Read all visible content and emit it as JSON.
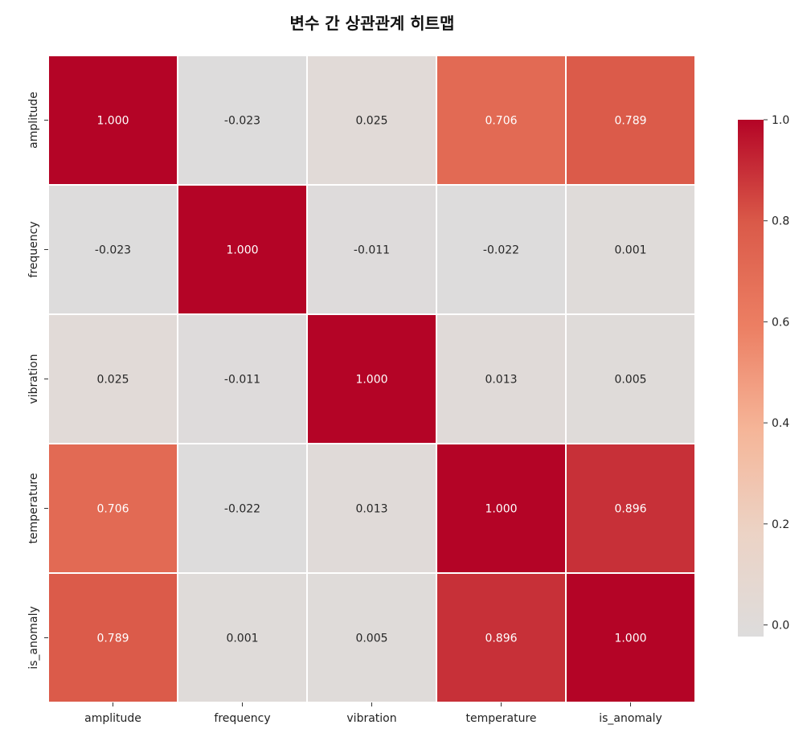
{
  "chart_data": {
    "type": "heatmap",
    "title": "변수 간 상관관계 히트맵",
    "x_categories": [
      "amplitude",
      "frequency",
      "vibration",
      "temperature",
      "is_anomaly"
    ],
    "y_categories": [
      "amplitude",
      "frequency",
      "vibration",
      "temperature",
      "is_anomaly"
    ],
    "values": [
      [
        1.0,
        -0.023,
        0.025,
        0.706,
        0.789
      ],
      [
        -0.023,
        1.0,
        -0.011,
        -0.022,
        0.001
      ],
      [
        0.025,
        -0.011,
        1.0,
        0.013,
        0.005
      ],
      [
        0.706,
        -0.022,
        0.013,
        1.0,
        0.896
      ],
      [
        0.789,
        0.001,
        0.005,
        0.896,
        1.0
      ]
    ],
    "value_labels": [
      [
        "1.000",
        "-0.023",
        "0.025",
        "0.706",
        "0.789"
      ],
      [
        "-0.023",
        "1.000",
        "-0.011",
        "-0.022",
        "0.001"
      ],
      [
        "0.025",
        "-0.011",
        "1.000",
        "0.013",
        "0.005"
      ],
      [
        "0.706",
        "-0.022",
        "0.013",
        "1.000",
        "0.896"
      ],
      [
        "0.789",
        "0.001",
        "0.005",
        "0.896",
        "1.000"
      ]
    ],
    "colorbar": {
      "range": [
        -0.023,
        1.0
      ],
      "ticks": [
        0.0,
        0.2,
        0.4,
        0.6,
        0.8,
        1.0
      ],
      "tick_labels": [
        "0.0",
        "0.2",
        "0.4",
        "0.6",
        "0.8",
        "1.0"
      ]
    },
    "colormap": "coolwarm",
    "colors": {
      "low": "#dddcdc",
      "high": "#b40426",
      "cell_border": "#ffffff"
    }
  }
}
